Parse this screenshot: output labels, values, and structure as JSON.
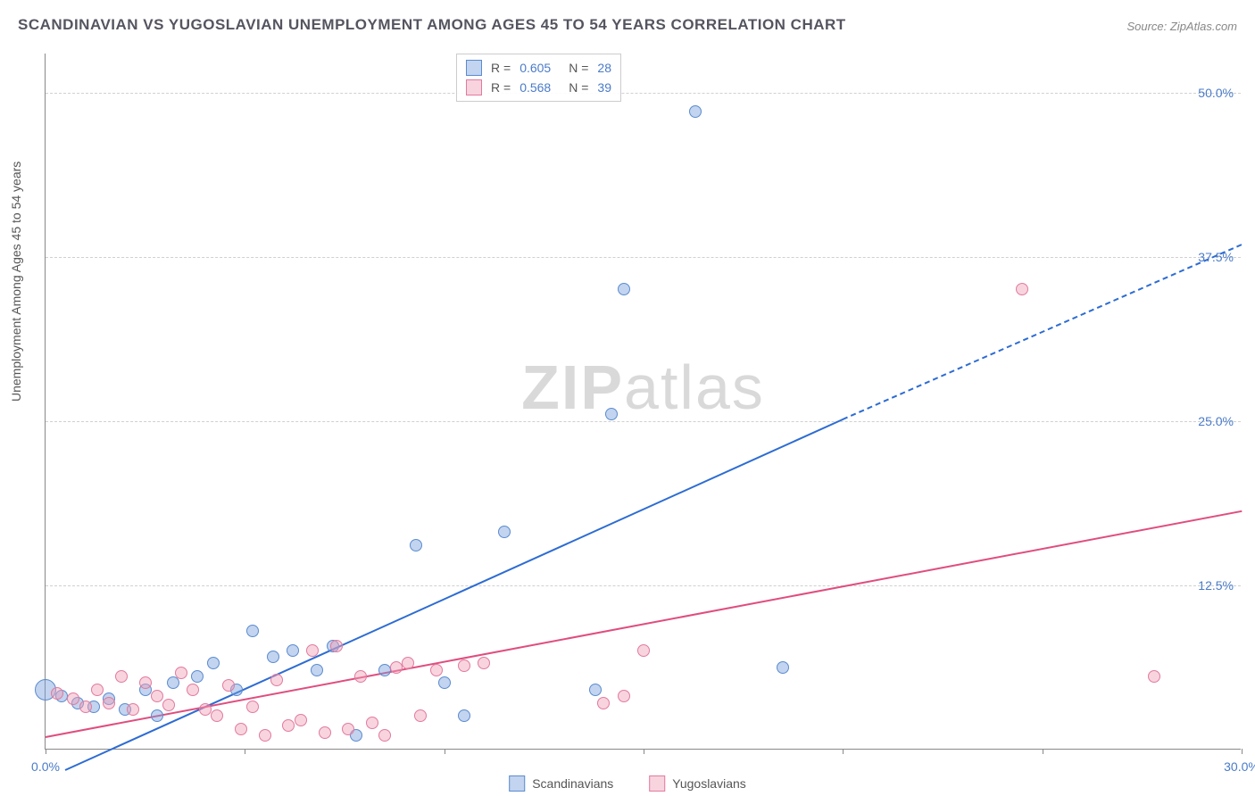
{
  "title": "SCANDINAVIAN VS YUGOSLAVIAN UNEMPLOYMENT AMONG AGES 45 TO 54 YEARS CORRELATION CHART",
  "source": "Source: ZipAtlas.com",
  "y_axis_label": "Unemployment Among Ages 45 to 54 years",
  "watermark_bold": "ZIP",
  "watermark_light": "atlas",
  "chart": {
    "type": "scatter",
    "xlim": [
      0,
      30
    ],
    "ylim": [
      0,
      53
    ],
    "x_ticks": [
      0,
      5,
      10,
      15,
      20,
      25,
      30
    ],
    "x_tick_labels": {
      "0": "0.0%",
      "30": "30.0%"
    },
    "y_ticks": [
      12.5,
      25.0,
      37.5,
      50.0
    ],
    "y_tick_labels": [
      "12.5%",
      "25.0%",
      "37.5%",
      "50.0%"
    ],
    "grid_color": "#d0d0d0",
    "axis_color": "#888888",
    "tick_label_color": "#4a7bc8",
    "background_color": "#ffffff",
    "tick_fontsize": 14,
    "title_fontsize": 17,
    "point_radius": 7,
    "series": [
      {
        "name": "Scandinavians",
        "color_fill": "rgba(120,160,220,0.45)",
        "color_stroke": "#5b8bd0",
        "trend_color": "#2d6cd2",
        "R": "0.605",
        "N": "28",
        "trend": {
          "x1": 0.5,
          "y1": -1.5,
          "x2": 20.0,
          "y2": 25.2,
          "x2_dash": 30.0,
          "y2_dash": 38.5
        },
        "points": [
          {
            "x": 0.0,
            "y": 4.5,
            "r": 12
          },
          {
            "x": 0.4,
            "y": 4.0,
            "r": 7
          },
          {
            "x": 0.8,
            "y": 3.5,
            "r": 7
          },
          {
            "x": 1.2,
            "y": 3.2,
            "r": 7
          },
          {
            "x": 1.6,
            "y": 3.8,
            "r": 7
          },
          {
            "x": 2.0,
            "y": 3.0,
            "r": 7
          },
          {
            "x": 2.5,
            "y": 4.5,
            "r": 7
          },
          {
            "x": 2.8,
            "y": 2.5,
            "r": 7
          },
          {
            "x": 3.2,
            "y": 5.0,
            "r": 7
          },
          {
            "x": 3.8,
            "y": 5.5,
            "r": 7
          },
          {
            "x": 4.2,
            "y": 6.5,
            "r": 7
          },
          {
            "x": 4.8,
            "y": 4.5,
            "r": 7
          },
          {
            "x": 5.2,
            "y": 9.0,
            "r": 7
          },
          {
            "x": 5.7,
            "y": 7.0,
            "r": 7
          },
          {
            "x": 6.2,
            "y": 7.5,
            "r": 7
          },
          {
            "x": 6.8,
            "y": 6.0,
            "r": 7
          },
          {
            "x": 7.2,
            "y": 7.8,
            "r": 7
          },
          {
            "x": 7.8,
            "y": 1.0,
            "r": 7
          },
          {
            "x": 8.5,
            "y": 6.0,
            "r": 7
          },
          {
            "x": 9.3,
            "y": 15.5,
            "r": 7
          },
          {
            "x": 10.0,
            "y": 5.0,
            "r": 7
          },
          {
            "x": 10.5,
            "y": 2.5,
            "r": 7
          },
          {
            "x": 11.5,
            "y": 16.5,
            "r": 7
          },
          {
            "x": 13.8,
            "y": 4.5,
            "r": 7
          },
          {
            "x": 14.2,
            "y": 25.5,
            "r": 7
          },
          {
            "x": 14.5,
            "y": 35.0,
            "r": 7
          },
          {
            "x": 16.3,
            "y": 48.5,
            "r": 7
          },
          {
            "x": 18.5,
            "y": 6.2,
            "r": 7
          }
        ]
      },
      {
        "name": "Yugoslavians",
        "color_fill": "rgba(240,160,185,0.45)",
        "color_stroke": "#e27a9d",
        "trend_color": "#e04d7e",
        "R": "0.568",
        "N": "39",
        "trend": {
          "x1": 0.0,
          "y1": 1.0,
          "x2": 30.0,
          "y2": 18.2
        },
        "points": [
          {
            "x": 0.3,
            "y": 4.2,
            "r": 7
          },
          {
            "x": 0.7,
            "y": 3.8,
            "r": 7
          },
          {
            "x": 1.0,
            "y": 3.2,
            "r": 7
          },
          {
            "x": 1.3,
            "y": 4.5,
            "r": 7
          },
          {
            "x": 1.6,
            "y": 3.5,
            "r": 7
          },
          {
            "x": 1.9,
            "y": 5.5,
            "r": 7
          },
          {
            "x": 2.2,
            "y": 3.0,
            "r": 7
          },
          {
            "x": 2.5,
            "y": 5.0,
            "r": 7
          },
          {
            "x": 2.8,
            "y": 4.0,
            "r": 7
          },
          {
            "x": 3.1,
            "y": 3.3,
            "r": 7
          },
          {
            "x": 3.4,
            "y": 5.8,
            "r": 7
          },
          {
            "x": 3.7,
            "y": 4.5,
            "r": 7
          },
          {
            "x": 4.0,
            "y": 3.0,
            "r": 7
          },
          {
            "x": 4.3,
            "y": 2.5,
            "r": 7
          },
          {
            "x": 4.6,
            "y": 4.8,
            "r": 7
          },
          {
            "x": 4.9,
            "y": 1.5,
            "r": 7
          },
          {
            "x": 5.2,
            "y": 3.2,
            "r": 7
          },
          {
            "x": 5.5,
            "y": 1.0,
            "r": 7
          },
          {
            "x": 5.8,
            "y": 5.2,
            "r": 7
          },
          {
            "x": 6.1,
            "y": 1.8,
            "r": 7
          },
          {
            "x": 6.4,
            "y": 2.2,
            "r": 7
          },
          {
            "x": 6.7,
            "y": 7.5,
            "r": 7
          },
          {
            "x": 7.0,
            "y": 1.2,
            "r": 7
          },
          {
            "x": 7.3,
            "y": 7.8,
            "r": 7
          },
          {
            "x": 7.6,
            "y": 1.5,
            "r": 7
          },
          {
            "x": 7.9,
            "y": 5.5,
            "r": 7
          },
          {
            "x": 8.2,
            "y": 2.0,
            "r": 7
          },
          {
            "x": 8.5,
            "y": 1.0,
            "r": 7
          },
          {
            "x": 8.8,
            "y": 6.2,
            "r": 7
          },
          {
            "x": 9.1,
            "y": 6.5,
            "r": 7
          },
          {
            "x": 9.4,
            "y": 2.5,
            "r": 7
          },
          {
            "x": 9.8,
            "y": 6.0,
            "r": 7
          },
          {
            "x": 10.5,
            "y": 6.3,
            "r": 7
          },
          {
            "x": 11.0,
            "y": 6.5,
            "r": 7
          },
          {
            "x": 14.0,
            "y": 3.5,
            "r": 7
          },
          {
            "x": 14.5,
            "y": 4.0,
            "r": 7
          },
          {
            "x": 15.0,
            "y": 7.5,
            "r": 7
          },
          {
            "x": 24.5,
            "y": 35.0,
            "r": 7
          },
          {
            "x": 27.8,
            "y": 5.5,
            "r": 7
          }
        ]
      }
    ]
  },
  "legend_top": {
    "label_R": "R =",
    "label_N": "N ="
  },
  "legend_bottom": [
    "Scandinavians",
    "Yugoslavians"
  ]
}
